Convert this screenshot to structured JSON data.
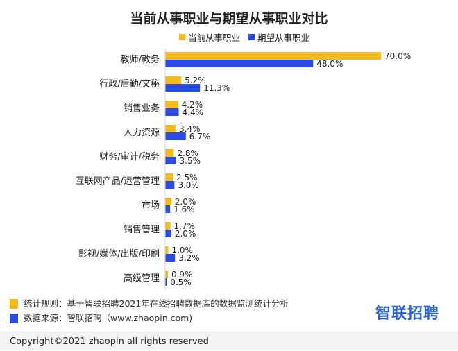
{
  "chart_data": {
    "type": "bar",
    "orientation": "horizontal",
    "title": "当前从事职业与期望从事职业对比",
    "categories": [
      "教师/教务",
      "行政/后勤/文秘",
      "销售业务",
      "人力资源",
      "财务/审计/税务",
      "互联网产品/运营管理",
      "市场",
      "销售管理",
      "影视/媒体/出版/印刷",
      "高级管理"
    ],
    "series": [
      {
        "name": "当前从事职业",
        "values": [
          70.0,
          5.2,
          4.2,
          3.4,
          2.8,
          2.5,
          2.0,
          1.7,
          1.0,
          0.9
        ],
        "labels": [
          "70.0%",
          "5.2%",
          "4.2%",
          "3.4%",
          "2.8%",
          "2.5%",
          "2.0%",
          "1.7%",
          "1.0%",
          "0.9%"
        ]
      },
      {
        "name": "期望从事职业",
        "values": [
          48.0,
          11.3,
          4.4,
          6.7,
          3.5,
          3.0,
          1.6,
          2.0,
          3.2,
          0.5
        ],
        "labels": [
          "48.0%",
          "11.3%",
          "4.4%",
          "6.7%",
          "3.5%",
          "3.0%",
          "1.6%",
          "2.0%",
          "3.2%",
          "0.5%"
        ]
      }
    ],
    "xlim": [
      0,
      70
    ],
    "grid": false,
    "legend_position": "top-center"
  },
  "colors": {
    "current": "#f5bb1a",
    "expected": "#2a4be3"
  },
  "notes": {
    "rule": "统计规则：基于智联招聘2021年在线招聘数据库的数据监测统计分析",
    "source": "数据来源：智联招聘（www.zhaopin.com)"
  },
  "brand": "智联招聘",
  "copyright": "Copyright©2021 zhaopin all rights reserved"
}
